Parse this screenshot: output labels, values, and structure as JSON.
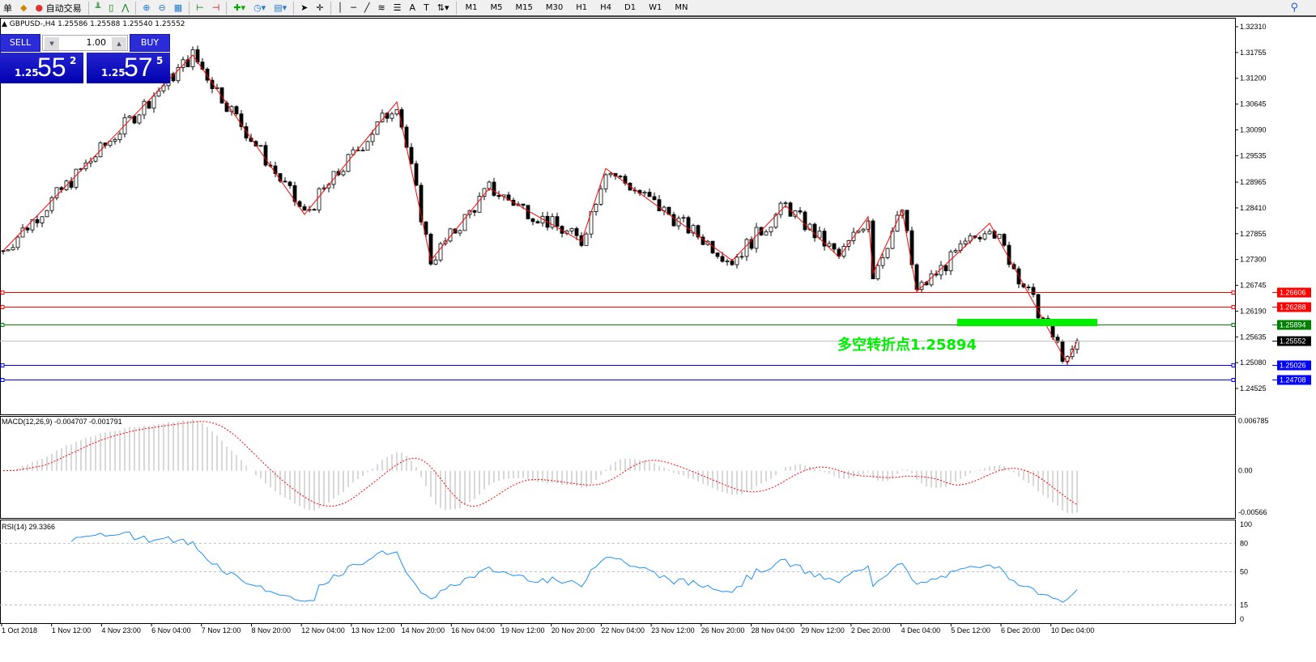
{
  "toolbar": {
    "menu_label": "单",
    "autotrade_label": "自动交易",
    "timeframes": [
      "M1",
      "M5",
      "M15",
      "M30",
      "H1",
      "H4",
      "D1",
      "W1",
      "MN"
    ],
    "icons": [
      "expert-icon",
      "autotrade-icon",
      "bar-chart-icon",
      "candle-chart-icon",
      "line-chart-icon",
      "zoom-in-icon",
      "zoom-out-icon",
      "tile-windows-icon",
      "autoscroll-icon",
      "chart-shift-icon",
      "new-order-icon",
      "clock-icon",
      "templates-icon",
      "cursor-icon",
      "crosshair-icon",
      "vertical-line-icon",
      "horizontal-line-icon",
      "trendline-icon",
      "fibo-icon",
      "fibo-fan-icon",
      "text-icon",
      "text-label-icon",
      "arrows-icon",
      "search-icon"
    ]
  },
  "chart": {
    "title": "GBPUSD-,H4  1.25586 1.25588 1.25540 1.25552"
  },
  "trade_panel": {
    "sell_label": "SELL",
    "buy_label": "BUY",
    "lot": "1.00",
    "sell_prefix": "1.25",
    "sell_big": "55",
    "sell_sup": "2",
    "buy_prefix": "1.25",
    "buy_big": "57",
    "buy_sup": "5",
    "color": "#0000b0"
  },
  "annotation": {
    "text": "多空转折点1.25894",
    "color": "#00ee00"
  },
  "chart_data": {
    "type": "candlestick",
    "symbol": "GBPUSD-",
    "timeframe": "H4",
    "price_axis": [
      "1.32310",
      "1.31755",
      "1.31200",
      "1.30645",
      "1.30090",
      "1.29535",
      "1.28965",
      "1.28410",
      "1.27855",
      "1.27300",
      "1.26745",
      "1.26190",
      "1.25635",
      "1.25080",
      "1.24525"
    ],
    "ylim": [
      1.24525,
      1.3231
    ],
    "time_axis": [
      "1 Oct 2018",
      "1 Nov 12:00",
      "4 Nov 23:00",
      "6 Nov 04:00",
      "7 Nov 12:00",
      "8 Nov 20:00",
      "12 Nov 04:00",
      "13 Nov 12:00",
      "14 Nov 20:00",
      "16 Nov 04:00",
      "19 Nov 12:00",
      "20 Nov 20:00",
      "22 Nov 04:00",
      "23 Nov 12:00",
      "26 Nov 20:00",
      "28 Nov 04:00",
      "29 Nov 12:00",
      "2 Dec 20:00",
      "4 Dec 04:00",
      "5 Dec 12:00",
      "6 Dec 20:00",
      "10 Dec 04:00"
    ],
    "zigzag": [
      [
        0,
        1.2749
      ],
      [
        39,
        1.317
      ],
      [
        62,
        1.2827
      ],
      [
        81,
        1.3069
      ],
      [
        88,
        1.2728
      ],
      [
        100,
        1.2883
      ],
      [
        119,
        1.2769
      ],
      [
        124,
        1.2926
      ],
      [
        150,
        1.2728
      ],
      [
        161,
        1.2846
      ],
      [
        172,
        1.2735
      ],
      [
        178,
        1.2822
      ],
      [
        179,
        1.27
      ],
      [
        185,
        1.2836
      ],
      [
        188,
        1.2661
      ],
      [
        203,
        1.2808
      ],
      [
        219,
        1.2506
      ],
      [
        221,
        1.2555
      ]
    ],
    "levels": [
      {
        "price": "1.26606",
        "color": "#ff0000"
      },
      {
        "price": "1.26288",
        "color": "#ff0000"
      },
      {
        "price": "1.25894",
        "color": "#008000"
      },
      {
        "price": "1.25552",
        "color": "#000000"
      },
      {
        "price": "1.25026",
        "color": "#0000ff"
      },
      {
        "price": "1.24708",
        "color": "#0000ff"
      }
    ],
    "macd": {
      "label": "MACD(12,26,9) -0.004707 -0.001791",
      "axis": [
        "0.006785",
        "0.00",
        "-0.00566"
      ],
      "ylim": [
        -0.00566,
        0.006785
      ],
      "histogram_color": "#c0c0c0",
      "signal_color": "#ff0000"
    },
    "rsi": {
      "label": "RSI(14) 29.3366",
      "axis": [
        "100",
        "80",
        "50",
        "15",
        "0"
      ],
      "levels": [
        80,
        50,
        15
      ],
      "color": "#1e90ff"
    }
  }
}
